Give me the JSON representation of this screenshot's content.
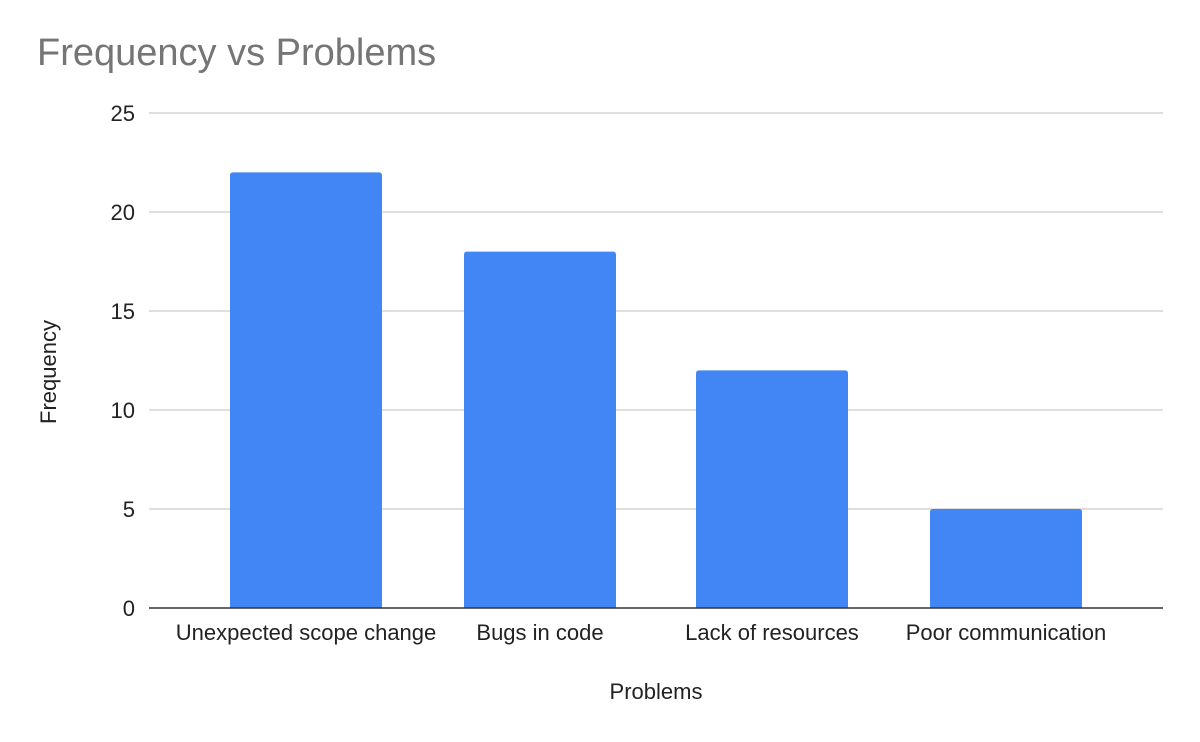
{
  "chart_data": {
    "type": "bar",
    "title": "Frequency vs Problems",
    "xlabel": "Problems",
    "ylabel": "Frequency",
    "categories": [
      "Unexpected scope change",
      "Bugs in code",
      "Lack of resources",
      "Poor communication"
    ],
    "values": [
      22,
      18,
      12,
      5
    ],
    "ylim": [
      0,
      25
    ],
    "yticks": [
      0,
      5,
      10,
      15,
      20,
      25
    ],
    "grid": true,
    "legend": "none",
    "colors": {
      "bar": "#4285f4",
      "grid": "#cccccc",
      "axis": "#333333",
      "title": "#757575"
    }
  }
}
